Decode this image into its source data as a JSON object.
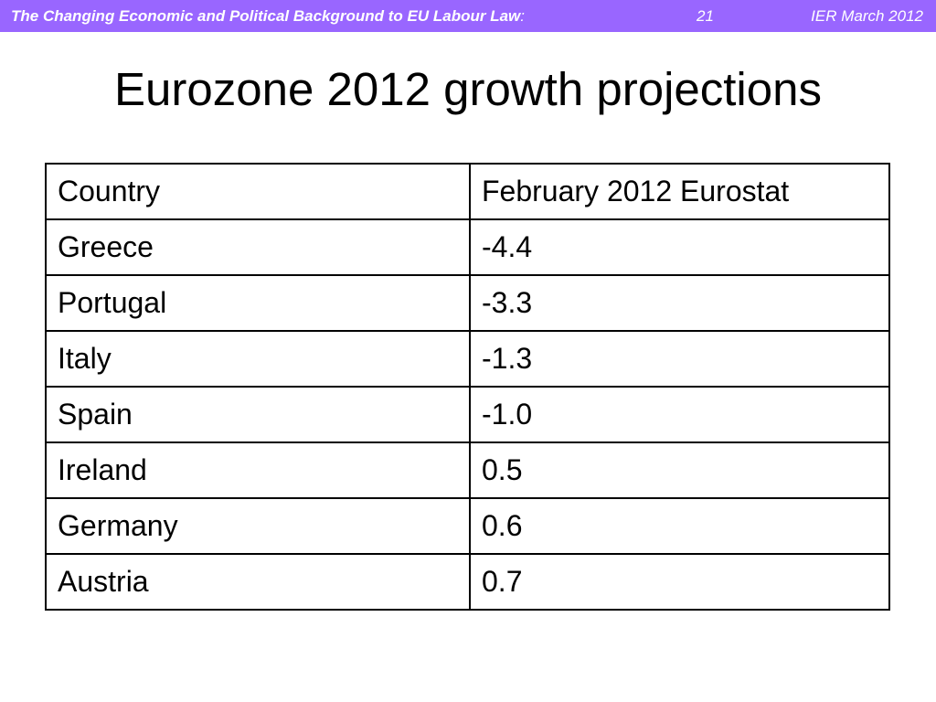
{
  "header": {
    "title_main": "The Changing Economic and Political Background to EU Labour Law",
    "title_suffix": ":",
    "page_number": "21",
    "date": "IER March 2012",
    "bar_color": "#9966ff"
  },
  "slide": {
    "title": "Eurozone 2012 growth projections"
  },
  "table": {
    "headers": [
      "Country",
      "February 2012 Eurostat"
    ],
    "rows": [
      [
        "Greece",
        "-4.4"
      ],
      [
        "Portugal",
        "-3.3"
      ],
      [
        "Italy",
        "-1.3"
      ],
      [
        "Spain",
        "-1.0"
      ],
      [
        "Ireland",
        "0.5"
      ],
      [
        "Germany",
        "0.6"
      ],
      [
        "Austria",
        "0.7"
      ]
    ]
  }
}
